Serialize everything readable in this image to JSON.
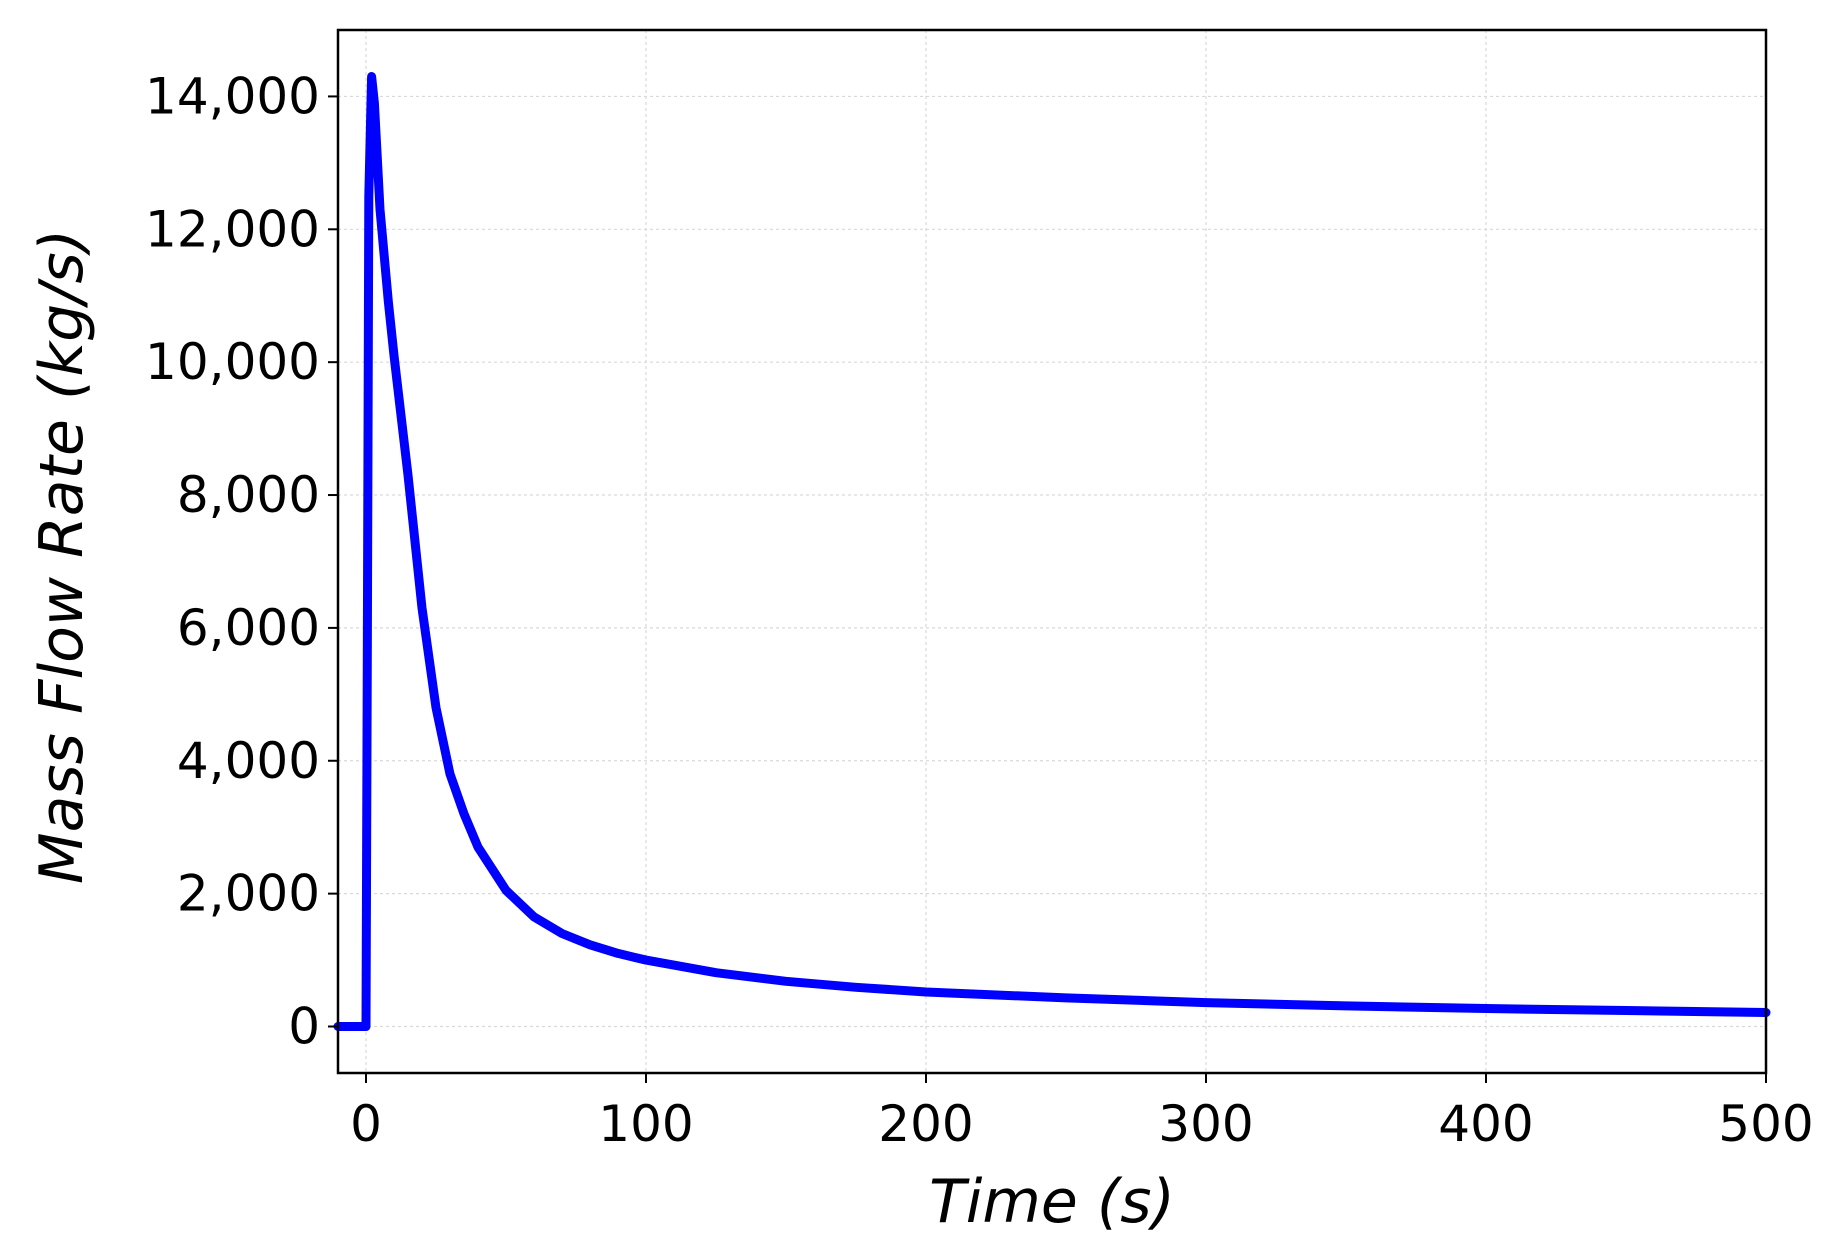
{
  "chart_data": {
    "type": "line",
    "title": "",
    "xlabel": "Time (s)",
    "ylabel": "Mass Flow Rate (kg/s)",
    "xlim": [
      -10,
      500
    ],
    "ylim": [
      -700,
      15000
    ],
    "x_ticks": [
      0,
      100,
      200,
      300,
      400,
      500
    ],
    "y_ticks": [
      0,
      2000,
      4000,
      6000,
      8000,
      10000,
      12000,
      14000
    ],
    "x_tick_labels": [
      "0",
      "100",
      "200",
      "300",
      "400",
      "500"
    ],
    "y_tick_labels": [
      "0",
      "2,000",
      "4,000",
      "6,000",
      "8,000",
      "10,000",
      "12,000",
      "14,000"
    ],
    "grid": true,
    "legend": "none",
    "series": [
      {
        "color": "#0000ff",
        "x": [
          -10,
          0,
          0.5,
          1,
          2,
          3,
          5,
          8,
          10,
          15,
          20,
          25,
          30,
          35,
          40,
          50,
          60,
          70,
          80,
          90,
          100,
          125,
          150,
          175,
          200,
          250,
          300,
          350,
          400,
          450,
          500
        ],
        "y": [
          0,
          0,
          6000,
          12500,
          14300,
          13900,
          12300,
          10900,
          10100,
          8300,
          6300,
          4800,
          3800,
          3200,
          2700,
          2050,
          1650,
          1400,
          1230,
          1100,
          1000,
          810,
          680,
          590,
          520,
          430,
          360,
          310,
          270,
          240,
          210
        ]
      }
    ]
  }
}
